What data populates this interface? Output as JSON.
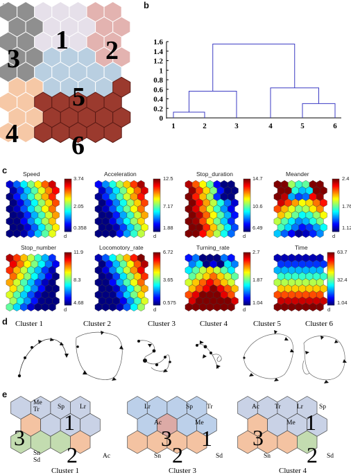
{
  "panel_labels": {
    "a": "a",
    "b": "b",
    "c": "c",
    "d": "d",
    "e": "e"
  },
  "panel_a": {
    "cluster_numbers": [
      "1",
      "2",
      "3",
      "4",
      "5",
      "6"
    ],
    "cluster_colors": {
      "1": "#e6e0ea",
      "2": "#e3b3b0",
      "3": "#8f8f8f",
      "4": "#f6c8a6",
      "5": "#b9cfe1",
      "6": "#9b3a2e"
    }
  },
  "chart_data": {
    "type": "dendrogram",
    "leaves": [
      "1",
      "2",
      "3",
      "4",
      "5",
      "6"
    ],
    "y_ticks": [
      "0",
      "0.2",
      "0.4",
      "0.6",
      "0.8",
      "1",
      "1.2",
      "1.4",
      "1.6"
    ],
    "ylim": [
      0,
      1.6
    ],
    "merges": [
      {
        "left": "1",
        "right": "2",
        "height": 0.12
      },
      {
        "left": "(1,2)",
        "right": "3",
        "height": 0.56
      },
      {
        "left": "5",
        "right": "6",
        "height": 0.3
      },
      {
        "left": "4",
        "right": "(5,6)",
        "height": 0.63
      },
      {
        "left": "(1,2,3)",
        "right": "(4,5,6)",
        "height": 1.55
      }
    ],
    "line_color": "#3b3bc4"
  },
  "panel_c": {
    "maps": [
      {
        "title": "Speed",
        "max": "3.74",
        "mid": "2.05",
        "min": "0.358",
        "unit": "d"
      },
      {
        "title": "Acceleration",
        "max": "12.5",
        "mid": "7.17",
        "min": "1.88",
        "unit": "d"
      },
      {
        "title": "Stop_duration",
        "max": "14.7",
        "mid": "10.6",
        "min": "6.49",
        "unit": "d"
      },
      {
        "title": "Meander",
        "max": "2.4",
        "mid": "1.76",
        "min": "1.12",
        "unit": "d"
      },
      {
        "title": "Stop_number",
        "max": "11.9",
        "mid": "8.3",
        "min": "4.68",
        "unit": "d"
      },
      {
        "title": "Locomotory_rate",
        "max": "6.72",
        "mid": "3.65",
        "min": "0.575",
        "unit": "d"
      },
      {
        "title": "Turning_rate",
        "max": "2.7",
        "mid": "1.87",
        "min": "1.04",
        "unit": "d"
      },
      {
        "title": "Time",
        "max": "63.7",
        "mid": "32.4",
        "min": "1.04",
        "unit": "d"
      }
    ]
  },
  "panel_d": {
    "clusters": [
      "Cluster 1",
      "Cluster 2",
      "Cluster 3",
      "Cluster 4",
      "Cluster 5",
      "Cluster 6"
    ]
  },
  "panel_e": {
    "maps": [
      {
        "caption": "Cluster 1",
        "labels": [
          "Me\nTr",
          "Sp",
          "Lr",
          "Ac",
          "Sn\nSd"
        ],
        "numbers": [
          "1",
          "3",
          "2"
        ]
      },
      {
        "caption": "Cluster 3",
        "labels": [
          "Lr",
          "Sp",
          "Tr",
          "Ac",
          "Me",
          "Sn",
          "Sd"
        ],
        "numbers": [
          "3",
          "1",
          "2"
        ]
      },
      {
        "caption": "Cluster 4",
        "labels": [
          "Ac",
          "Tr",
          "Lr",
          "Sp",
          "Me",
          "Sn",
          "Sd"
        ],
        "numbers": [
          "1",
          "3",
          "2"
        ]
      }
    ],
    "colors": {
      "blue": "#c9d2e6",
      "peach": "#f4c3a2",
      "green": "#c3dcb0",
      "pink": "#dcaaa6",
      "lightblue": "#bcd0ea"
    }
  }
}
